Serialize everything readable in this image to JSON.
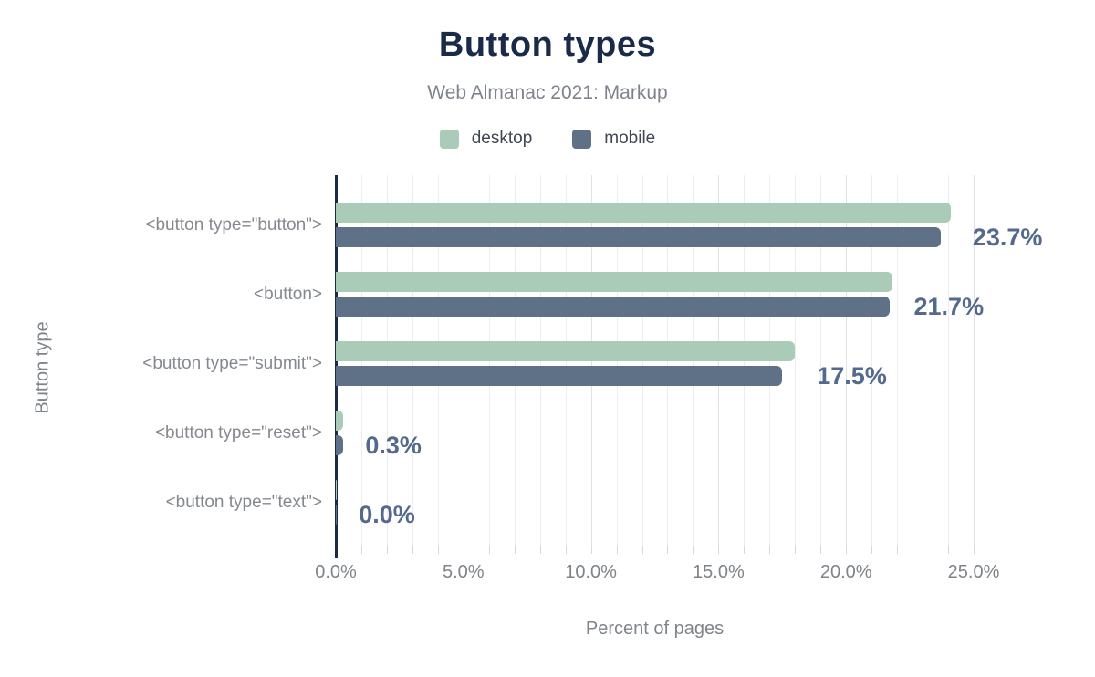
{
  "header": {
    "title": "Button types",
    "subtitle": "Web Almanac 2021: Markup"
  },
  "legend": [
    {
      "label": "desktop",
      "color": "#a9cbb7"
    },
    {
      "label": "mobile",
      "color": "#5f7186"
    }
  ],
  "chart_data": {
    "type": "bar",
    "orientation": "horizontal",
    "title": "Button types",
    "subtitle": "Web Almanac 2021: Markup",
    "categories": [
      "<button type=\"button\">",
      "<button>",
      "<button type=\"submit\">",
      "<button type=\"reset\">",
      "<button type=\"text\">"
    ],
    "series": [
      {
        "name": "desktop",
        "color": "#a9cbb7",
        "values": [
          24.1,
          21.8,
          18.0,
          0.3,
          0.0
        ]
      },
      {
        "name": "mobile",
        "color": "#5f7186",
        "values": [
          23.7,
          21.7,
          17.5,
          0.3,
          0.0
        ]
      }
    ],
    "annotations": [
      "23.7%",
      "21.7%",
      "17.5%",
      "0.3%",
      "0.0%"
    ],
    "xlabel": "Percent of pages",
    "ylabel": "Button type",
    "xlim": [
      0,
      25
    ],
    "x_ticks": [
      "0.0%",
      "5.0%",
      "10.0%",
      "15.0%",
      "20.0%",
      "25.0%"
    ],
    "minor_tick_step": 1,
    "major_tick_step": 5,
    "grid": true,
    "legend_position": "top",
    "annotation_color": "#54698e",
    "axis_color": "#1a2b49",
    "gridline_color": "#ededed"
  }
}
